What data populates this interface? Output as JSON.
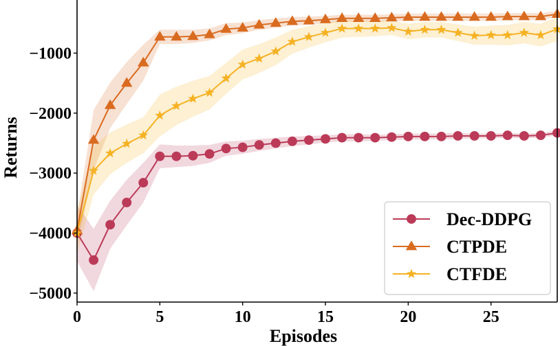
{
  "chart_data": {
    "type": "line",
    "title": "",
    "xlabel": "Episodes",
    "ylabel": "Returns",
    "xlim": [
      0,
      29
    ],
    "ylim": [
      -5150,
      0
    ],
    "xticks": [
      0,
      5,
      10,
      15,
      20,
      25
    ],
    "yticks": [
      -5000,
      -4000,
      -3000,
      -2000,
      -1000
    ],
    "x_tick_labels": [
      "0",
      "5",
      "10",
      "15",
      "20",
      "25"
    ],
    "y_tick_labels": [
      "−5000",
      "−4000",
      "−3000",
      "−2000",
      "−1000"
    ],
    "legend_position": "bottom-right",
    "x": [
      0,
      1,
      2,
      3,
      4,
      5,
      6,
      7,
      8,
      9,
      10,
      11,
      12,
      13,
      14,
      15,
      16,
      17,
      18,
      19,
      20,
      21,
      22,
      23,
      24,
      25,
      26,
      27,
      28,
      29
    ],
    "series": [
      {
        "name": "Dec-DDPG",
        "color": "#bb3a58",
        "marker": "circle",
        "values": [
          -4000,
          -4450,
          -3860,
          -3490,
          -3160,
          -2720,
          -2720,
          -2710,
          -2680,
          -2590,
          -2570,
          -2530,
          -2500,
          -2470,
          -2450,
          -2430,
          -2410,
          -2410,
          -2410,
          -2400,
          -2390,
          -2390,
          -2390,
          -2380,
          -2380,
          -2380,
          -2370,
          -2380,
          -2370,
          -2330
        ],
        "band": [
          470,
          520,
          400,
          380,
          330,
          200,
          180,
          170,
          150,
          120,
          110,
          100,
          90,
          80,
          70,
          60,
          60,
          60,
          50,
          50,
          50,
          50,
          50,
          50,
          40,
          40,
          40,
          40,
          40,
          40
        ]
      },
      {
        "name": "CTPDE",
        "color": "#d96b20",
        "marker": "triangle",
        "values": [
          -3960,
          -2450,
          -1870,
          -1500,
          -1160,
          -730,
          -730,
          -720,
          -690,
          -600,
          -580,
          -530,
          -500,
          -470,
          -460,
          -440,
          -420,
          -420,
          -420,
          -410,
          -400,
          -400,
          -400,
          -400,
          -400,
          -400,
          -390,
          -390,
          -390,
          -350
        ],
        "band": [
          250,
          500,
          380,
          350,
          300,
          120,
          120,
          110,
          100,
          100,
          90,
          80,
          80,
          70,
          70,
          60,
          60,
          60,
          60,
          60,
          60,
          60,
          60,
          60,
          60,
          60,
          60,
          60,
          60,
          50
        ]
      },
      {
        "name": "CTFDE",
        "color": "#f5b223",
        "marker": "star",
        "values": [
          -4000,
          -2960,
          -2670,
          -2510,
          -2370,
          -2040,
          -1880,
          -1760,
          -1660,
          -1420,
          -1190,
          -1090,
          -970,
          -810,
          -730,
          -660,
          -590,
          -590,
          -590,
          -580,
          -640,
          -610,
          -610,
          -660,
          -710,
          -700,
          -700,
          -660,
          -700,
          -600
        ],
        "band": [
          350,
          400,
          350,
          320,
          300,
          350,
          320,
          300,
          280,
          260,
          250,
          240,
          230,
          200,
          180,
          160,
          150,
          140,
          130,
          120,
          130,
          130,
          130,
          140,
          150,
          160,
          170,
          180,
          190,
          200
        ]
      }
    ]
  }
}
